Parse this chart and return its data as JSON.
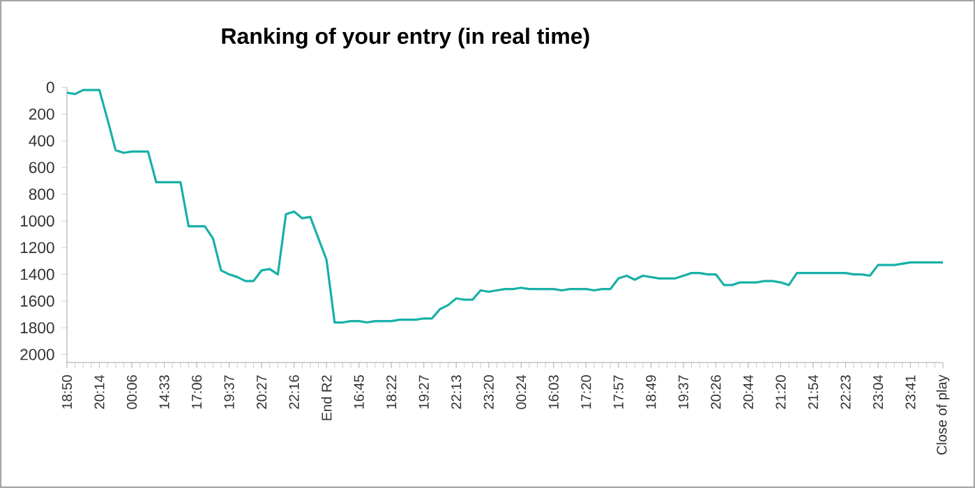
{
  "chart_data": {
    "type": "line",
    "title": "Ranking of your entry (in real time)",
    "categories": [
      "18:50",
      null,
      null,
      null,
      "20:14",
      null,
      null,
      null,
      "00:06",
      null,
      null,
      null,
      "14:33",
      null,
      null,
      null,
      "17:06",
      null,
      null,
      null,
      "19:37",
      null,
      null,
      null,
      "20:27",
      null,
      null,
      null,
      "22:16",
      null,
      null,
      null,
      "End R2",
      null,
      null,
      null,
      "16:45",
      null,
      null,
      null,
      "18:22",
      null,
      null,
      null,
      "19:27",
      null,
      null,
      null,
      "22:13",
      null,
      null,
      null,
      "23:20",
      null,
      null,
      null,
      "00:24",
      null,
      null,
      null,
      "16:03",
      null,
      null,
      null,
      "17:20",
      null,
      null,
      null,
      "17:57",
      null,
      null,
      null,
      "18:49",
      null,
      null,
      null,
      "19:37",
      null,
      null,
      null,
      "20:26",
      null,
      null,
      null,
      "20:44",
      null,
      null,
      null,
      "21:20",
      null,
      null,
      null,
      "21:54",
      null,
      null,
      null,
      "22:23",
      null,
      null,
      null,
      "23:04",
      null,
      null,
      null,
      "23:41",
      null,
      null,
      null,
      "Close of play"
    ],
    "values": [
      40,
      50,
      20,
      20,
      20,
      240,
      470,
      490,
      480,
      480,
      480,
      710,
      710,
      710,
      710,
      1040,
      1040,
      1040,
      1130,
      1370,
      1400,
      1420,
      1450,
      1450,
      1370,
      1360,
      1400,
      950,
      930,
      980,
      970,
      1130,
      1290,
      1760,
      1760,
      1750,
      1750,
      1760,
      1750,
      1750,
      1750,
      1740,
      1740,
      1740,
      1730,
      1730,
      1660,
      1630,
      1580,
      1590,
      1590,
      1520,
      1530,
      1520,
      1510,
      1510,
      1500,
      1510,
      1510,
      1510,
      1510,
      1520,
      1510,
      1510,
      1510,
      1520,
      1510,
      1510,
      1430,
      1410,
      1440,
      1410,
      1420,
      1430,
      1430,
      1430,
      1410,
      1390,
      1390,
      1400,
      1400,
      1480,
      1480,
      1460,
      1460,
      1460,
      1450,
      1450,
      1460,
      1480,
      1390,
      1390,
      1390,
      1390,
      1390,
      1390,
      1390,
      1400,
      1400,
      1410,
      1330,
      1330,
      1330,
      1320,
      1310,
      1310,
      1310,
      1310,
      1310
    ],
    "color": "#17b0a8",
    "marker": "none",
    "line_style": "solid",
    "ylim": [
      2060,
      0
    ],
    "yticks": [
      0,
      200,
      400,
      600,
      800,
      1000,
      1200,
      1400,
      1600,
      1800,
      2000
    ]
  }
}
